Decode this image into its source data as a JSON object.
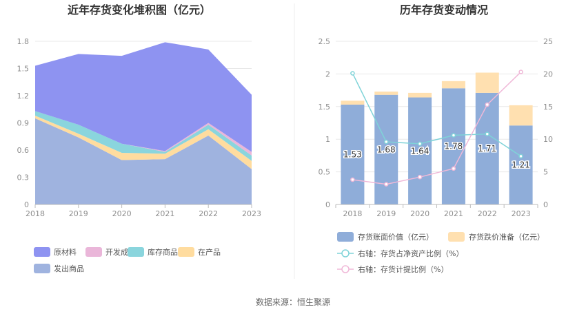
{
  "source_text": "数据来源：恒生聚源",
  "chart_data": [
    {
      "type": "area",
      "title": "近年存货变化堆积图（亿元）",
      "x": [
        "2018",
        "2019",
        "2020",
        "2021",
        "2022",
        "2023"
      ],
      "ylim": [
        0,
        1.8
      ],
      "yticks": [
        "0",
        "0.3",
        "0.6",
        "0.9",
        "1.2",
        "1.5",
        "1.8"
      ],
      "stacked": true,
      "series": [
        {
          "name": "发出商品",
          "color": "#9fb3df",
          "values": [
            0.95,
            0.74,
            0.49,
            0.5,
            0.76,
            0.39
          ]
        },
        {
          "name": "在产品",
          "color": "#ffdc9f",
          "values": [
            0.03,
            0.04,
            0.08,
            0.06,
            0.07,
            0.09
          ]
        },
        {
          "name": "库存商品",
          "color": "#8ad5dd",
          "values": [
            0.05,
            0.1,
            0.1,
            0.02,
            0.05,
            0.06
          ]
        },
        {
          "name": "开发成本",
          "color": "#eab6d9",
          "values": [
            0.0,
            0.0,
            0.0,
            0.01,
            0.02,
            0.04
          ]
        },
        {
          "name": "原材料",
          "color": "#8e93f1",
          "values": [
            0.5,
            0.78,
            0.97,
            1.2,
            0.81,
            0.63
          ]
        }
      ],
      "legend_order": [
        "原材料",
        "开发成本",
        "库存商品",
        "在产品",
        "发出商品"
      ],
      "legend_position": "bottom",
      "grid": true
    },
    {
      "type": "bar+line",
      "title": "历年存货变动情况",
      "x": [
        "2018",
        "2019",
        "2020",
        "2021",
        "2022",
        "2023"
      ],
      "ylim_left": [
        0,
        2.5
      ],
      "yticks_left": [
        "0",
        "0.5",
        "1",
        "1.5",
        "2",
        "2.5"
      ],
      "ylim_right": [
        0,
        25
      ],
      "yticks_right": [
        "0",
        "5",
        "10",
        "15",
        "20",
        "25"
      ],
      "bars": [
        {
          "name": "存货账面价值（亿元）",
          "color": "#8fadd9",
          "values": [
            1.53,
            1.68,
            1.64,
            1.78,
            1.71,
            1.21
          ]
        },
        {
          "name": "存货跌价准备（亿元）",
          "color": "#ffe0b0",
          "values": [
            0.06,
            0.05,
            0.07,
            0.11,
            0.31,
            0.31
          ]
        }
      ],
      "bar_labels": [
        "1.53",
        "1.68",
        "1.64",
        "1.78",
        "1.71",
        "1.21"
      ],
      "lines": [
        {
          "name": "右轴：存货占净资产比例（%）",
          "color": "#7fd3d8",
          "values": [
            20.1,
            9.6,
            9.3,
            10.6,
            10.8,
            7.4
          ]
        },
        {
          "name": "右轴：存货计提比例（%）",
          "color": "#f0b8d8",
          "values": [
            3.8,
            3.1,
            4.2,
            5.5,
            15.3,
            20.3
          ]
        }
      ],
      "legend_position": "bottom",
      "grid": true
    }
  ]
}
